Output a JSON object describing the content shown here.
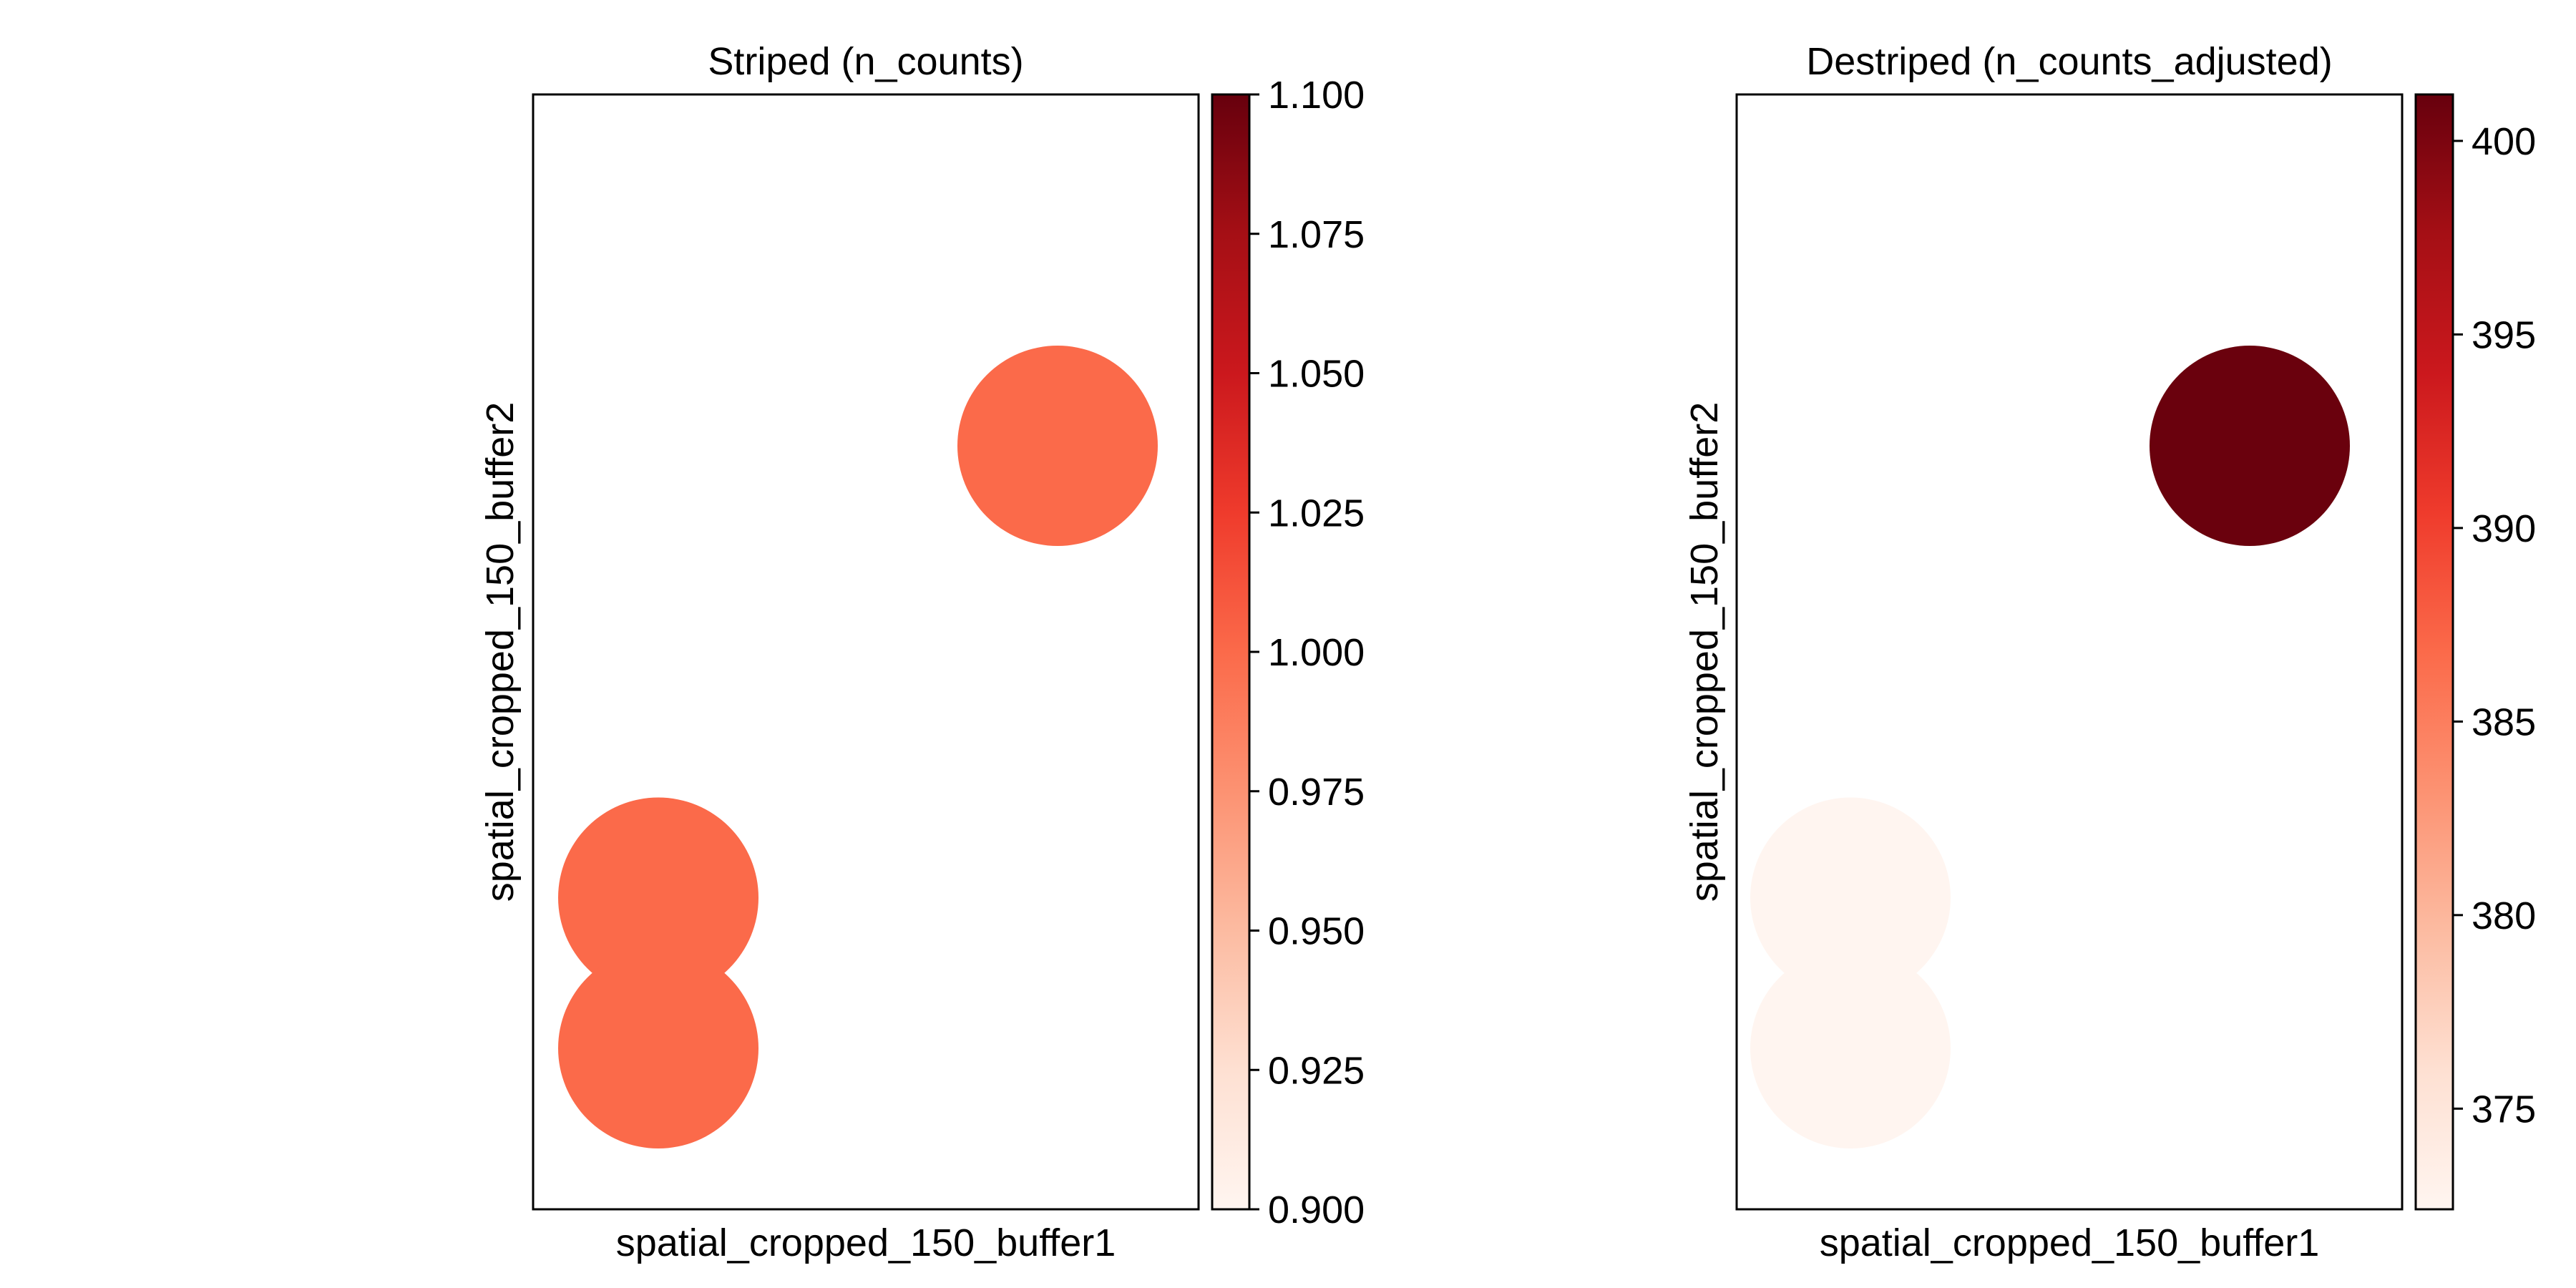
{
  "colormap": {
    "name": "Reds",
    "stops": [
      "#fff5f0",
      "#fee0d2",
      "#fcbba1",
      "#fc9272",
      "#fb6a4a",
      "#ef3b2c",
      "#cb181d",
      "#a50f15",
      "#67000d"
    ]
  },
  "chart_data": [
    {
      "type": "scatter",
      "title": "Striped (n_counts)",
      "xlabel": "spatial_cropped_150_buffer1",
      "ylabel": "spatial_cropped_150_buffer2",
      "xticks_visible": false,
      "yticks_visible": false,
      "grid": false,
      "points": [
        {
          "x": 2,
          "y": 4,
          "value": 1.0
        },
        {
          "x": 0,
          "y": 1,
          "value": 1.0
        },
        {
          "x": 0,
          "y": 0,
          "value": 1.0
        }
      ],
      "colorbar": {
        "vmin": 0.9,
        "vmax": 1.1,
        "ticks": [
          0.9,
          0.925,
          0.95,
          0.975,
          1.0,
          1.025,
          1.05,
          1.075,
          1.1
        ],
        "tick_labels": [
          "0.900",
          "0.925",
          "0.950",
          "0.975",
          "1.000",
          "1.025",
          "1.050",
          "1.075",
          "1.100"
        ]
      }
    },
    {
      "type": "scatter",
      "title": "Destriped (n_counts_adjusted)",
      "xlabel": "spatial_cropped_150_buffer1",
      "ylabel": "spatial_cropped_150_buffer2",
      "xticks_visible": false,
      "yticks_visible": false,
      "grid": false,
      "points": [
        {
          "x": 2,
          "y": 4,
          "value": 401
        },
        {
          "x": 0,
          "y": 1,
          "value": 372.4
        },
        {
          "x": 0,
          "y": 0,
          "value": 372.4
        }
      ],
      "colorbar": {
        "vmin": 372.4,
        "vmax": 401.2,
        "ticks": [
          375,
          380,
          385,
          390,
          395,
          400
        ],
        "tick_labels": [
          "375",
          "380",
          "385",
          "390",
          "395",
          "400"
        ]
      }
    }
  ]
}
